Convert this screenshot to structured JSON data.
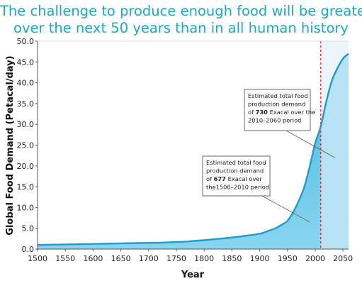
{
  "title_line1": "The challenge to produce enough food will be greater",
  "title_line2": "over the next 50 years than in all human history",
  "chart_data": {
    "type": "area",
    "xlabel": "Year",
    "ylabel": "Global Food Demand (Petacal/day)",
    "xlim": [
      1500,
      2060
    ],
    "ylim": [
      0,
      50
    ],
    "x_ticks": [
      "1500",
      "1550",
      "1600",
      "1650",
      "1700",
      "1750",
      "1800",
      "1850",
      "1900",
      "1950",
      "2000",
      "2050"
    ],
    "y_ticks": [
      "0.0",
      "5.0",
      "10.0",
      "15.0",
      "20.0",
      "25.0",
      "30.0",
      "35.0",
      "40.0",
      "45.0",
      "50.0"
    ],
    "grid": false,
    "divider_year": 2010,
    "series": [
      {
        "x": [
          1500,
          1520,
          1540,
          1560,
          1580,
          1600,
          1620,
          1640,
          1660,
          1680,
          1700,
          1720,
          1740,
          1760,
          1780,
          1800,
          1820,
          1840,
          1860,
          1880,
          1900,
          1910,
          1920,
          1930,
          1940,
          1950,
          1960,
          1970,
          1980,
          1990,
          2000,
          2010,
          2020,
          2030,
          2040,
          2050,
          2060
        ],
        "y": [
          1.0,
          1.05,
          1.1,
          1.15,
          1.2,
          1.25,
          1.3,
          1.35,
          1.4,
          1.45,
          1.5,
          1.55,
          1.65,
          1.75,
          1.95,
          2.15,
          2.4,
          2.65,
          2.95,
          3.3,
          3.7,
          4.1,
          4.6,
          5.1,
          5.9,
          6.8,
          8.8,
          11.5,
          14.8,
          19.8,
          25.5,
          29.5,
          35.5,
          40.5,
          43.5,
          45.8,
          47.0
        ]
      }
    ],
    "annotations": [
      {
        "id": "note_2010_2060",
        "lines": [
          "Estimated total food",
          "production demand",
          "of 730 Exacal over the",
          "2010–2060 period"
        ],
        "bold": "730",
        "point_to": {
          "x": 2035,
          "y": 22
        }
      },
      {
        "id": "note_1500_2010",
        "lines": [
          "Estimated total food",
          "production demand",
          "of 677 Exacal over",
          "the1500–2010 period"
        ],
        "bold": "677",
        "point_to": {
          "x": 1990,
          "y": 6.5
        }
      }
    ],
    "colors": {
      "line": "#1a9ed0",
      "fill_past": "#5fc4e6",
      "fill_future": "#b6e2f3",
      "divider": "#d8232a",
      "axis": "#555555",
      "title": "#1aa8cc"
    }
  }
}
